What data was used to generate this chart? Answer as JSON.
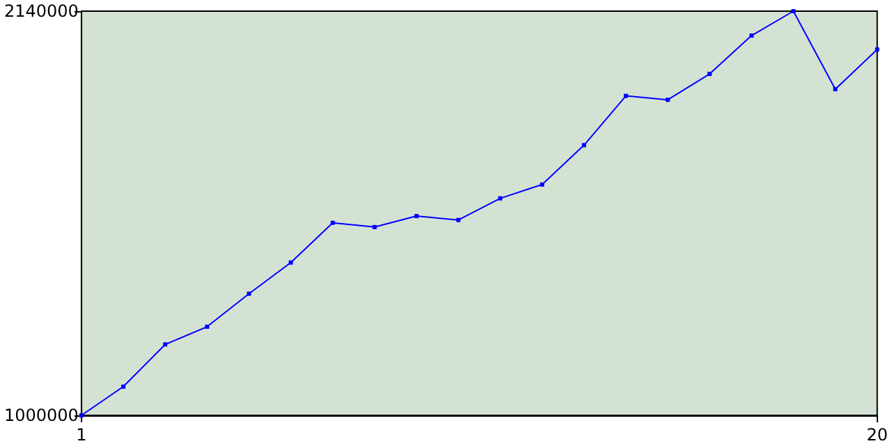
{
  "chart_data": {
    "type": "line",
    "x": [
      1,
      2,
      3,
      4,
      5,
      6,
      7,
      8,
      9,
      10,
      11,
      12,
      13,
      14,
      15,
      16,
      17,
      18,
      19,
      20
    ],
    "series": [
      {
        "color": "#0000ff",
        "values": [
          1000000,
          1081000,
          1200000,
          1250000,
          1343000,
          1431000,
          1543000,
          1531000,
          1562000,
          1551000,
          1612000,
          1651000,
          1762000,
          1901000,
          1890000,
          1963000,
          2071000,
          2140000,
          1920000,
          2032000
        ]
      }
    ],
    "xlim": [
      1,
      20
    ],
    "xticks": [
      1,
      20
    ],
    "ylim": [
      1000000,
      2140000
    ],
    "yticks": [
      1000000,
      2140000
    ],
    "grid": false,
    "marker": "square",
    "line_style": "solid"
  }
}
